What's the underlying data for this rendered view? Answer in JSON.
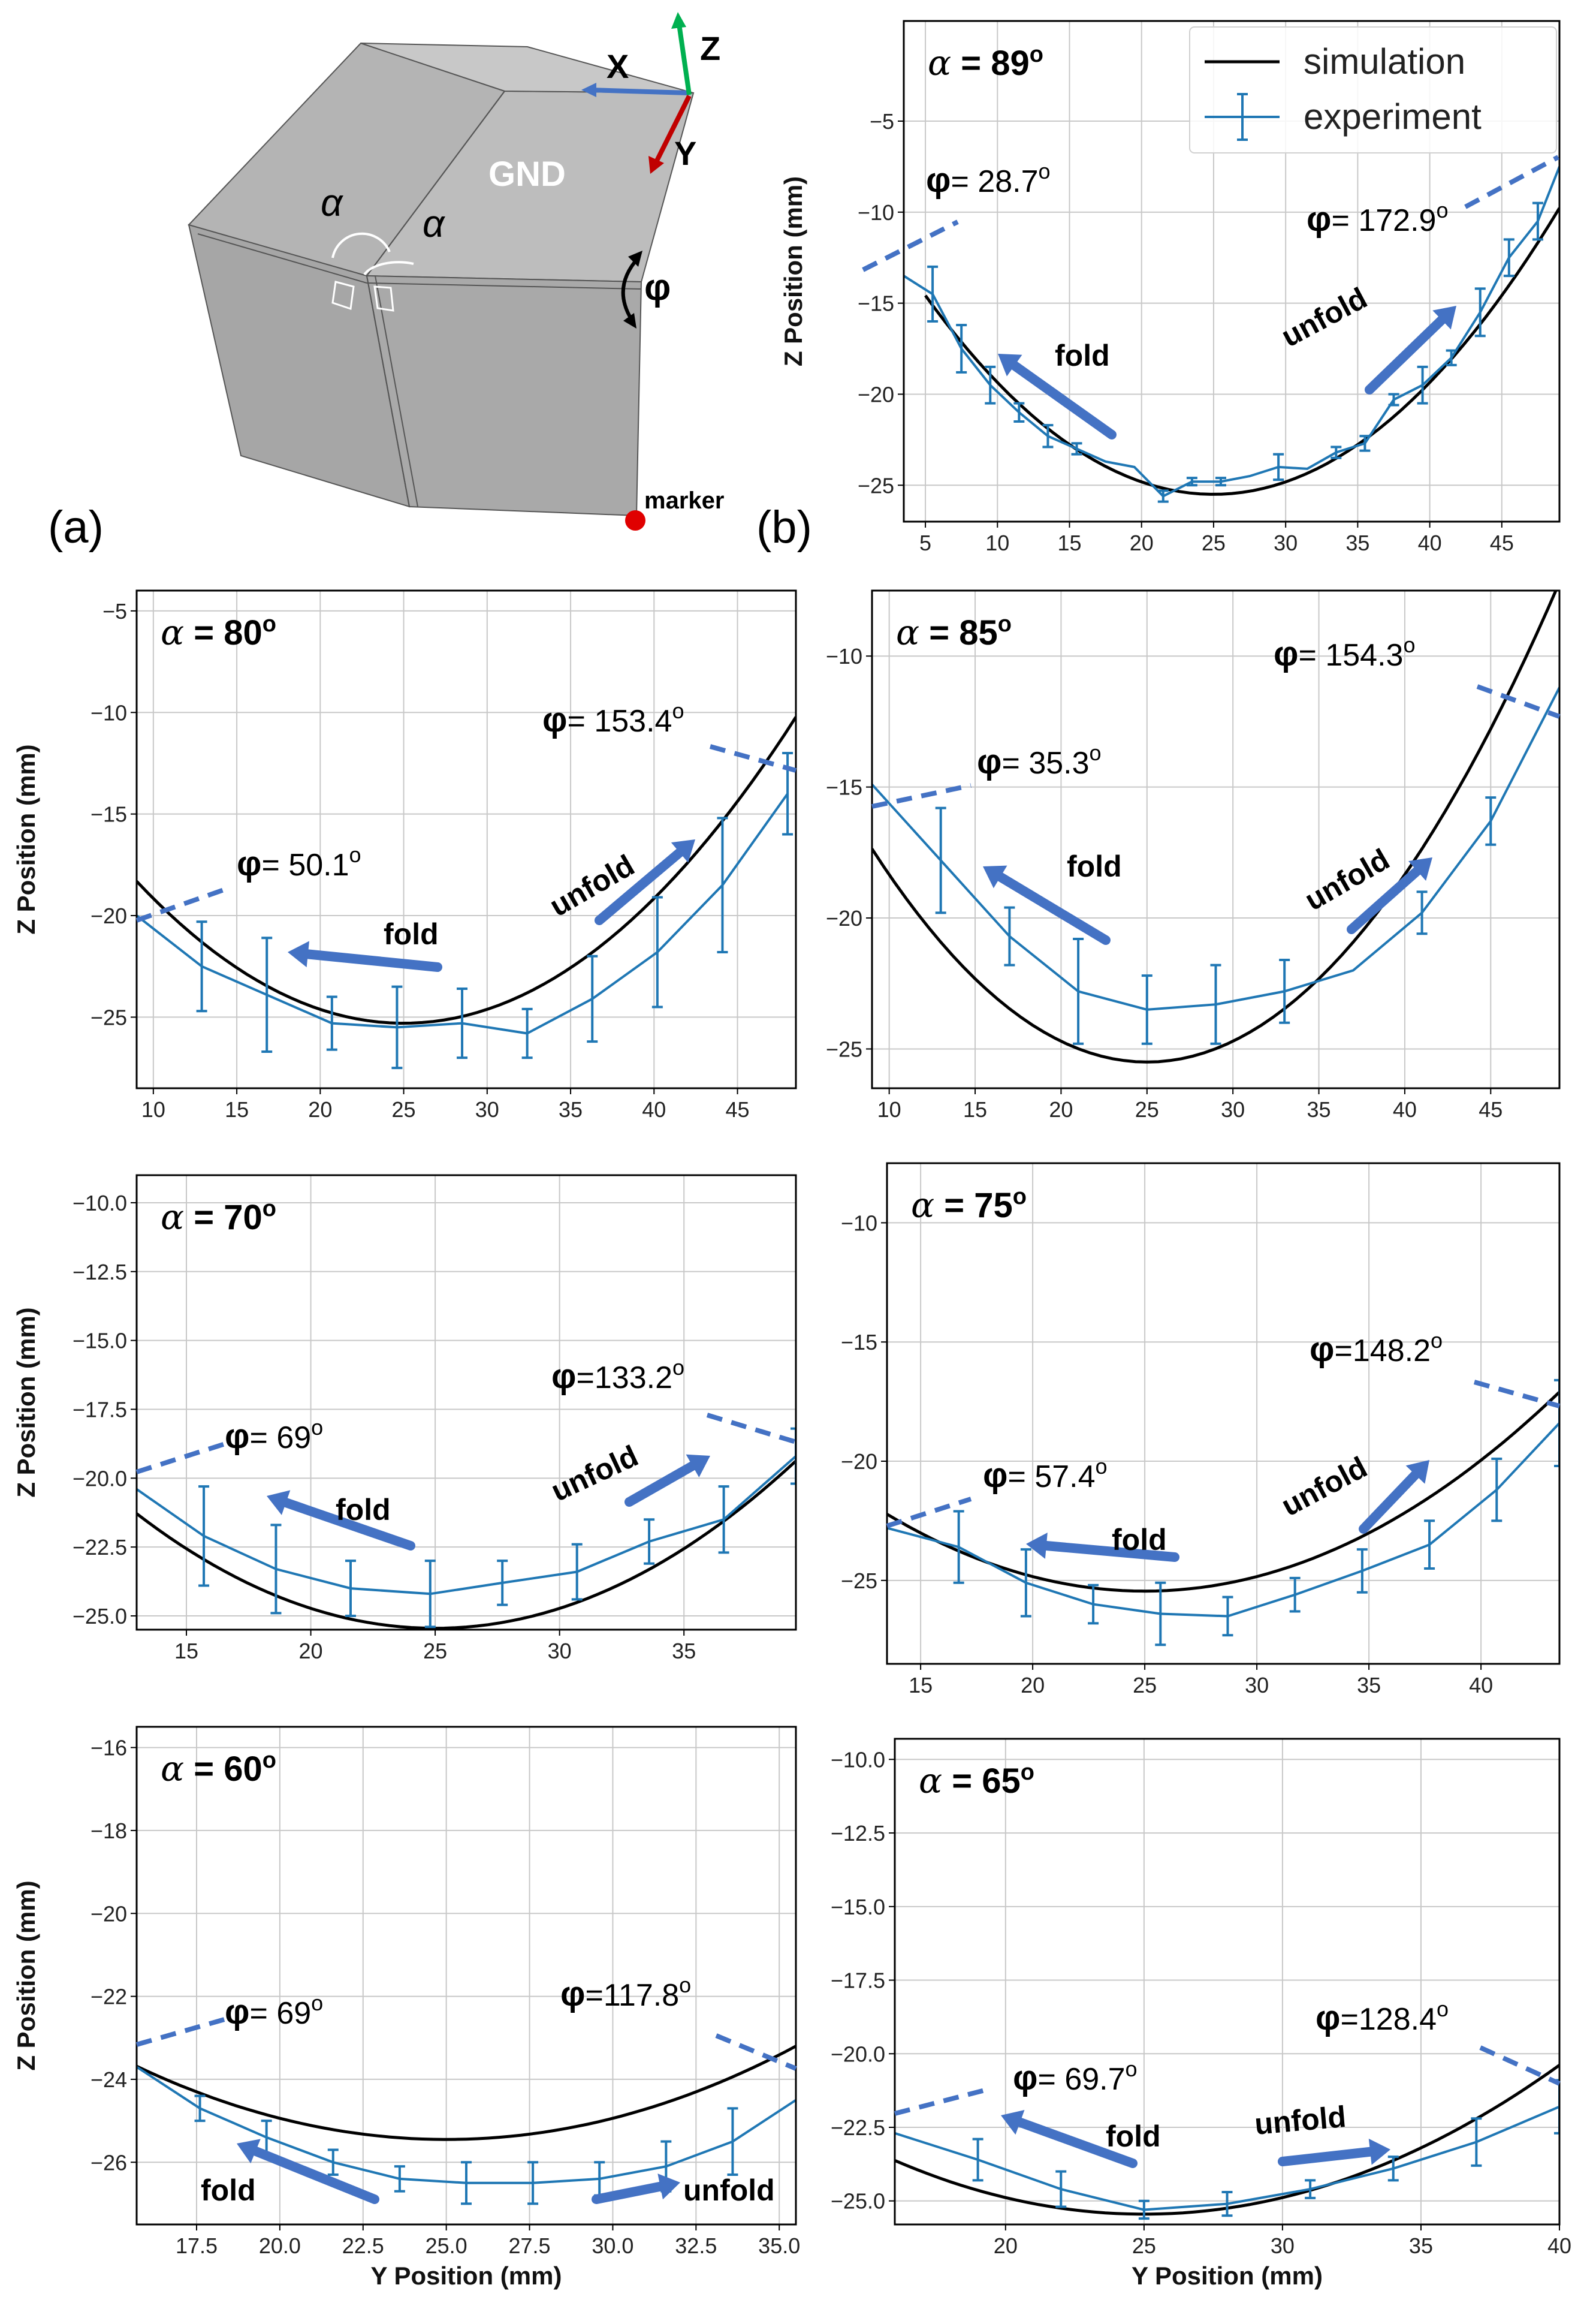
{
  "panel_a": {
    "label": "(a)",
    "gnd_label": "GND",
    "axis_x": "X",
    "axis_y": "Y",
    "axis_z": "Z",
    "alpha_symbol": "α",
    "phi_symbol": "φ",
    "marker_label": "marker",
    "colors": {
      "face": "#c6c6c6",
      "face_dark": "#a9a9a9",
      "x_axis": "#4472c4",
      "y_axis": "#c00000",
      "z_axis": "#00b050",
      "marker": "#e00000"
    }
  },
  "panel_b_label": "(b)",
  "colors": {
    "simulation": "#000000",
    "experiment": "#1f77b4",
    "annotation": "#4472c4",
    "grid": "#c8c8c8"
  },
  "legend": {
    "simulation": "simulation",
    "experiment": "experiment"
  },
  "xlabel": "Y Position (mm)",
  "ylabel": "Z Position (mm)",
  "fold_label": "fold",
  "unfold_label": "unfold",
  "chart_data": [
    {
      "type": "line",
      "title": "α = 89º",
      "alpha_text": "= 89",
      "xlim": [
        3.5,
        49
      ],
      "ylim": [
        -27,
        0.5
      ],
      "xticks": [
        5,
        10,
        15,
        20,
        25,
        30,
        35,
        40,
        45
      ],
      "yticks": [
        -5,
        -10,
        -15,
        -20,
        -25
      ],
      "ytick_labels": [
        "−5",
        "−10",
        "−15",
        "−20",
        "−25"
      ],
      "show_legend": true,
      "show_xlabel": false,
      "show_ylabel": true,
      "phi_left": "= 28.7º",
      "phi_right": "= 172.9º",
      "simulation": {
        "vertex": [
          25,
          -25.5
        ],
        "a": 0.0273,
        "x_range": [
          5,
          49
        ]
      },
      "experiment": {
        "x": [
          3.5,
          5.5,
          7.5,
          9.5,
          11.5,
          13.5,
          15.5,
          17.5,
          19.5,
          21.5,
          23.5,
          25.5,
          27.5,
          29.5,
          31.5,
          33.5,
          35.5,
          37.5,
          39.5,
          41.5,
          43.5,
          45.5,
          47.5,
          49
        ],
        "y": [
          -13.5,
          -14.5,
          -17.5,
          -19.5,
          -21.0,
          -22.3,
          -23.0,
          -23.7,
          -24.0,
          -25.6,
          -24.8,
          -24.8,
          -24.5,
          -24.0,
          -24.1,
          -23.2,
          -22.7,
          -20.3,
          -19.5,
          -18.0,
          -15.5,
          -12.5,
          -10.5,
          -7.5
        ],
        "err": [
          0,
          1.5,
          1.3,
          1.0,
          0.5,
          0.6,
          0.3,
          0,
          0,
          0.3,
          0.2,
          0.2,
          0,
          0.7,
          0,
          0.3,
          0.4,
          0.3,
          1.0,
          0.4,
          1.3,
          1.0,
          1.0,
          0
        ]
      }
    },
    {
      "type": "line",
      "title": "α = 80º",
      "alpha_text": "= 80",
      "xlim": [
        9,
        48.5
      ],
      "ylim": [
        -28.5,
        -4
      ],
      "xticks": [
        10,
        15,
        20,
        25,
        30,
        35,
        40,
        45
      ],
      "yticks": [
        -5,
        -10,
        -15,
        -20,
        -25
      ],
      "ytick_labels": [
        "−5",
        "−10",
        "−15",
        "−20",
        "−25"
      ],
      "show_legend": false,
      "show_xlabel": false,
      "show_ylabel": true,
      "phi_left": "= 50.1º",
      "phi_right": "= 153.4º",
      "simulation": {
        "vertex": [
          25,
          -25.3
        ],
        "a": 0.0273,
        "x_range": [
          9,
          48.5
        ]
      },
      "experiment": {
        "x": [
          9,
          12.9,
          16.8,
          20.7,
          24.6,
          28.5,
          32.4,
          36.3,
          40.2,
          44.1,
          48
        ],
        "y": [
          -20.0,
          -22.5,
          -23.9,
          -25.3,
          -25.5,
          -25.3,
          -25.8,
          -24.1,
          -21.8,
          -18.5,
          -14.0
        ],
        "err": [
          0,
          2.2,
          2.8,
          1.3,
          2.0,
          1.7,
          1.2,
          2.1,
          2.7,
          3.3,
          2.0
        ]
      }
    },
    {
      "type": "line",
      "title": "α = 85º",
      "alpha_text": "= 85",
      "xlim": [
        9,
        49
      ],
      "ylim": [
        -26.5,
        -7.5
      ],
      "xticks": [
        10,
        15,
        20,
        25,
        30,
        35,
        40,
        45
      ],
      "yticks": [
        -10,
        -15,
        -20,
        -25
      ],
      "ytick_labels": [
        "−10",
        "−15",
        "−20",
        "−25"
      ],
      "show_legend": false,
      "show_xlabel": false,
      "show_ylabel": false,
      "phi_left": "= 35.3º",
      "phi_right": "= 154.3º",
      "simulation": {
        "vertex": [
          25,
          -25.5
        ],
        "a": 0.0318,
        "x_range": [
          9,
          49
        ]
      },
      "experiment": {
        "x": [
          9,
          13,
          17,
          21,
          25,
          29,
          33,
          37,
          41,
          45,
          49
        ],
        "y": [
          -14.9,
          -17.8,
          -20.7,
          -22.8,
          -23.5,
          -23.3,
          -22.8,
          -22.0,
          -19.8,
          -16.3,
          -11.2
        ],
        "err": [
          0,
          2.0,
          1.1,
          2.0,
          1.3,
          1.5,
          1.2,
          0,
          0.8,
          0.9,
          0
        ]
      }
    },
    {
      "type": "line",
      "title": "α = 70º",
      "alpha_text": "= 70",
      "xlim": [
        13,
        39.5
      ],
      "ylim": [
        -25.5,
        -9
      ],
      "xticks": [
        15,
        20,
        25,
        30,
        35
      ],
      "yticks": [
        -10,
        -12.5,
        -15,
        -17.5,
        -20,
        -22.5,
        -25
      ],
      "ytick_labels": [
        "−10.0",
        "−12.5",
        "−15.0",
        "−17.5",
        "−20.0",
        "−22.5",
        "−25.0"
      ],
      "show_legend": false,
      "show_xlabel": false,
      "show_ylabel": true,
      "phi_left": "= 69º",
      "phi_right": "=133.2º",
      "simulation": {
        "vertex": [
          25,
          -25.45
        ],
        "a": 0.0289,
        "x_range": [
          13,
          39.5
        ]
      },
      "experiment": {
        "x": [
          13,
          15.7,
          18.6,
          21.6,
          24.8,
          27.7,
          30.7,
          33.6,
          36.6,
          39.5
        ],
        "y": [
          -20.4,
          -22.1,
          -23.3,
          -24.0,
          -24.2,
          -23.8,
          -23.4,
          -22.3,
          -21.5,
          -19.2
        ],
        "err": [
          0,
          1.8,
          1.6,
          1.0,
          1.2,
          0.8,
          1.0,
          0.8,
          1.2,
          1.0
        ]
      }
    },
    {
      "type": "line",
      "title": "α = 75º",
      "alpha_text": "= 75",
      "xlim": [
        13.5,
        43.5
      ],
      "ylim": [
        -28.5,
        -7.5
      ],
      "xticks": [
        15,
        20,
        25,
        30,
        35,
        40
      ],
      "yticks": [
        -10,
        -15,
        -20,
        -25
      ],
      "ytick_labels": [
        "−10",
        "−15",
        "−20",
        "−25"
      ],
      "show_legend": false,
      "show_xlabel": false,
      "show_ylabel": false,
      "phi_left": "= 57.4º",
      "phi_right": "=148.2º",
      "simulation": {
        "vertex": [
          25,
          -25.45
        ],
        "a": 0.0244,
        "x_range": [
          13.5,
          43.5
        ]
      },
      "experiment": {
        "x": [
          13.5,
          16.7,
          19.7,
          22.7,
          25.7,
          28.7,
          31.7,
          34.7,
          37.7,
          40.7,
          43.5
        ],
        "y": [
          -22.8,
          -23.6,
          -25.1,
          -26.0,
          -26.4,
          -26.5,
          -25.6,
          -24.6,
          -23.5,
          -21.2,
          -18.4
        ],
        "err": [
          0,
          1.5,
          1.4,
          0.8,
          1.3,
          0.8,
          0.7,
          0.9,
          1.0,
          1.3,
          1.8
        ]
      }
    },
    {
      "type": "line",
      "title": "α = 60º",
      "alpha_text": "= 60",
      "xlim": [
        15.7,
        35.5
      ],
      "ylim": [
        -27.5,
        -15.5
      ],
      "xticks": [
        17.5,
        20,
        22.5,
        25,
        27.5,
        30,
        32.5,
        35
      ],
      "xtick_labels": [
        "17.5",
        "20.0",
        "22.5",
        "25.0",
        "27.5",
        "30.0",
        "32.5",
        "35.0"
      ],
      "yticks": [
        -16,
        -18,
        -20,
        -22,
        -24,
        -26
      ],
      "ytick_labels": [
        "−16",
        "−18",
        "−20",
        "−22",
        "−24",
        "−26"
      ],
      "show_legend": false,
      "show_xlabel": true,
      "show_ylabel": true,
      "phi_left": "= 69º",
      "phi_right": "=117.8º",
      "simulation": {
        "vertex": [
          25,
          -25.45
        ],
        "a": 0.0204,
        "x_range": [
          15.7,
          35.5
        ]
      },
      "experiment": {
        "x": [
          15.7,
          17.6,
          19.6,
          21.6,
          23.6,
          25.6,
          27.6,
          29.6,
          31.6,
          33.6,
          35.5
        ],
        "y": [
          -23.7,
          -24.7,
          -25.4,
          -26.0,
          -26.4,
          -26.5,
          -26.5,
          -26.4,
          -26.1,
          -25.5,
          -24.5
        ],
        "err": [
          0,
          0.3,
          0.4,
          0.3,
          0.3,
          0.5,
          0.5,
          0.4,
          0.6,
          0.8,
          0
        ]
      }
    },
    {
      "type": "line",
      "title": "α = 65º",
      "alpha_text": "= 65",
      "xlim": [
        16,
        40
      ],
      "ylim": [
        -25.8,
        -9.3
      ],
      "xticks": [
        20,
        25,
        30,
        35,
        40
      ],
      "yticks": [
        -10,
        -12.5,
        -15,
        -17.5,
        -20,
        -22.5,
        -25
      ],
      "ytick_labels": [
        "−10.0",
        "−12.5",
        "−15.0",
        "−17.5",
        "−20.0",
        "−22.5",
        "−25.0"
      ],
      "show_legend": false,
      "show_xlabel": true,
      "show_ylabel": false,
      "phi_left": "= 69.7º",
      "phi_right": "=128.4º",
      "simulation": {
        "vertex": [
          25,
          -25.45
        ],
        "a": 0.0225,
        "x_range": [
          16,
          40
        ]
      },
      "experiment": {
        "x": [
          16,
          19,
          22,
          25,
          28,
          31,
          34,
          37,
          40
        ],
        "y": [
          -22.7,
          -23.6,
          -24.6,
          -25.3,
          -25.1,
          -24.6,
          -23.9,
          -23.0,
          -21.8
        ],
        "err": [
          0,
          0.7,
          0.6,
          0.3,
          0.4,
          0.3,
          0.4,
          0.8,
          0.9
        ]
      }
    }
  ]
}
